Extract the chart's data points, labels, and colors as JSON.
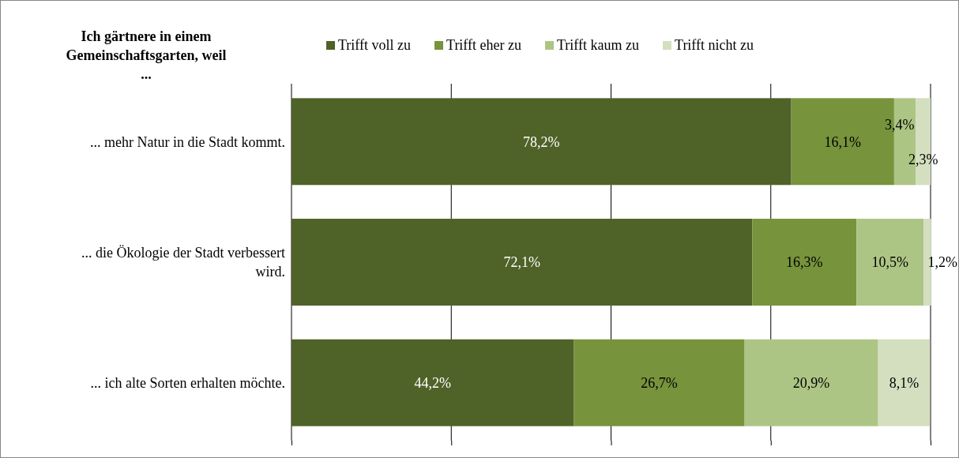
{
  "chart_data": {
    "type": "bar",
    "orientation": "horizontal",
    "stacked": true,
    "title": "Ich gärtnere in einem Gemeinschaftsgarten, weil ...",
    "categories": [
      "... mehr Natur in die Stadt kommt.",
      "... die Ökologie der Stadt verbessert wird.",
      "... ich alte Sorten erhalten möchte."
    ],
    "series": [
      {
        "name": "Trifft voll zu",
        "color": "#4f6228",
        "values": [
          78.2,
          72.1,
          44.2
        ],
        "value_labels": [
          "78,2%",
          "72,1%",
          "44,2%"
        ]
      },
      {
        "name": "Trifft eher zu",
        "color": "#77933c",
        "values": [
          16.1,
          16.3,
          26.7
        ],
        "value_labels": [
          "16,1%",
          "16,3%",
          "26,7%"
        ]
      },
      {
        "name": "Trifft kaum zu",
        "color": "#adc584",
        "values": [
          3.4,
          10.5,
          20.9
        ],
        "value_labels": [
          "3,4%",
          "10,5%",
          "20,9%"
        ]
      },
      {
        "name": "Trifft nicht zu",
        "color": "#d3dfbf",
        "values": [
          2.3,
          1.2,
          8.1
        ],
        "value_labels": [
          "2,3%",
          "1,2%",
          "8,1%"
        ]
      }
    ],
    "xlim": [
      0,
      100
    ],
    "xticks": [
      {
        "value": 0,
        "label": null
      },
      {
        "value": 25,
        "label": null
      },
      {
        "value": 50,
        "label": null
      },
      {
        "value": 75,
        "label": null
      },
      {
        "value": 100,
        "label": null
      }
    ],
    "grid": "x",
    "legend": "top",
    "tick_labels": false
  }
}
